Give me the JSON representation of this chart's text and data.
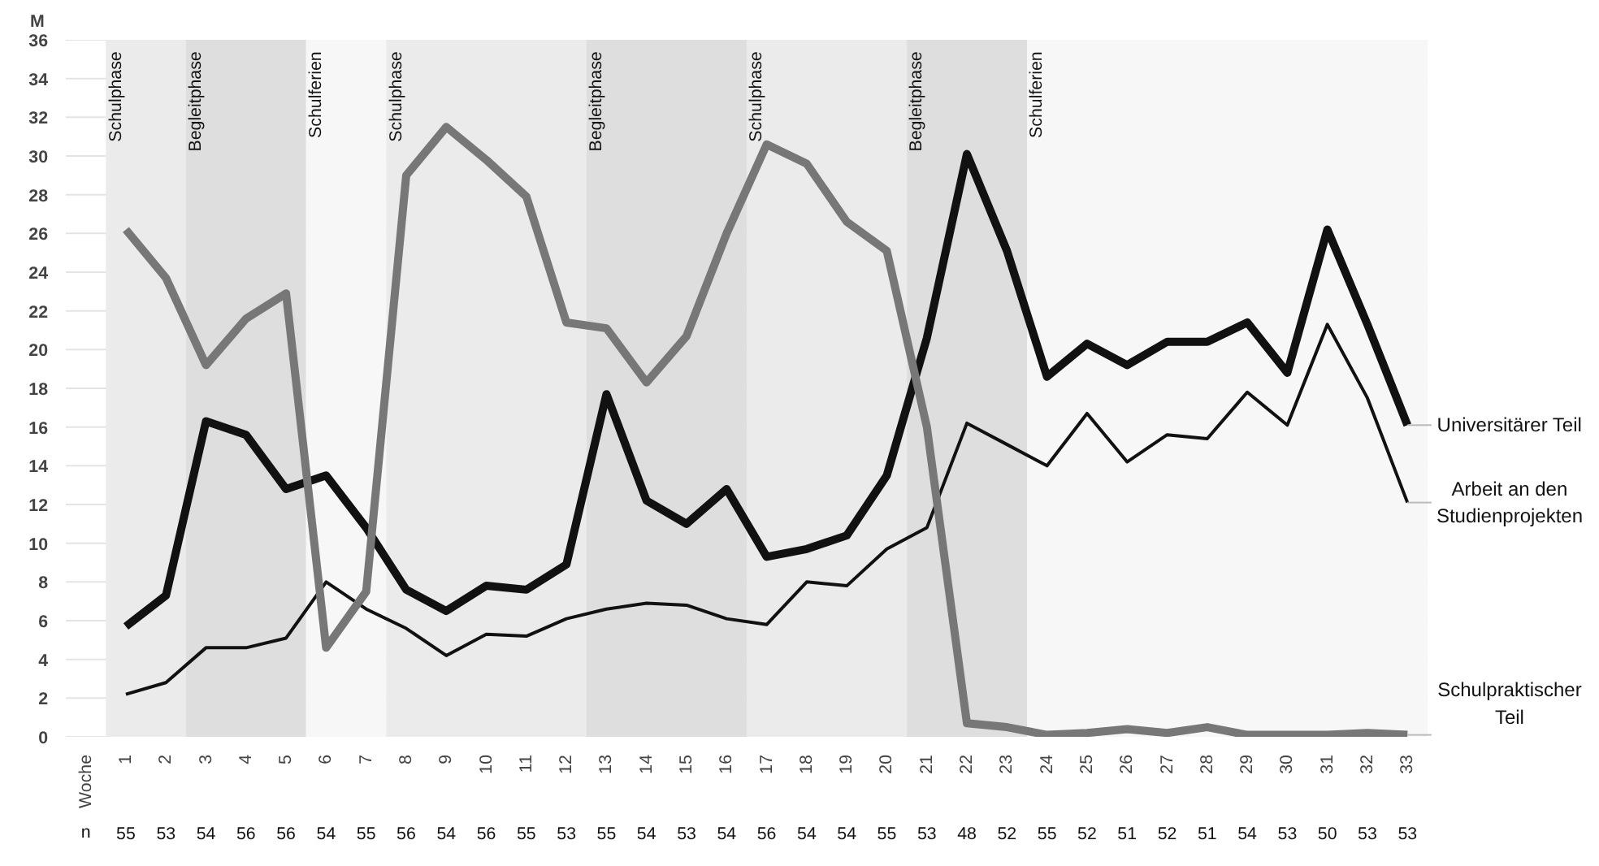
{
  "chart_data": {
    "type": "line",
    "ylabel": "M",
    "categories": [
      "1",
      "2",
      "3",
      "4",
      "5",
      "6",
      "7",
      "8",
      "9",
      "10",
      "11",
      "12",
      "13",
      "14",
      "15",
      "16",
      "17",
      "18",
      "19",
      "20",
      "21",
      "22",
      "23",
      "24",
      "25",
      "26",
      "27",
      "28",
      "29",
      "30",
      "31",
      "32",
      "33"
    ],
    "series": [
      {
        "name": "Universitärer Teil",
        "color": "#111111",
        "values": [
          5.7,
          7.3,
          16.3,
          15.6,
          12.8,
          13.5,
          10.8,
          7.6,
          6.5,
          7.8,
          7.6,
          8.9,
          17.7,
          12.2,
          11.0,
          12.8,
          9.3,
          9.7,
          10.4,
          13.5,
          20.6,
          30.1,
          25.1,
          18.6,
          20.3,
          19.2,
          20.4,
          20.4,
          21.4,
          18.8,
          26.2,
          21.3,
          16.1
        ]
      },
      {
        "name": "Arbeit an den Studienprojekten",
        "color": "#111111",
        "values": [
          2.2,
          2.8,
          4.6,
          4.6,
          5.1,
          8.0,
          6.6,
          5.6,
          4.2,
          5.3,
          5.2,
          6.1,
          6.6,
          6.9,
          6.8,
          6.1,
          5.8,
          8.0,
          7.8,
          9.7,
          10.8,
          16.2,
          15.1,
          14.0,
          16.7,
          14.2,
          15.6,
          15.4,
          17.8,
          16.1,
          21.3,
          17.5,
          12.1
        ]
      },
      {
        "name": "Schulpraktischer Teil",
        "color": "#777777",
        "values": [
          26.2,
          23.7,
          19.2,
          21.6,
          22.9,
          4.6,
          7.5,
          29.0,
          31.5,
          29.8,
          27.9,
          21.4,
          21.1,
          18.3,
          20.7,
          26.0,
          30.6,
          29.6,
          26.6,
          25.1,
          16.0,
          0.7,
          0.5,
          0.1,
          0.2,
          0.4,
          0.2,
          0.5,
          0.1,
          0.1,
          0.1,
          0.2,
          0.1
        ]
      }
    ],
    "ylim": [
      0,
      36
    ],
    "yticks": [
      0,
      2,
      4,
      6,
      8,
      10,
      12,
      14,
      16,
      18,
      20,
      22,
      24,
      26,
      28,
      30,
      32,
      34,
      36
    ],
    "grid": "y",
    "legend": false,
    "bands": [
      {
        "axis": "x",
        "from": "1",
        "to": "2",
        "label": "Schulphase",
        "color": "#ebebeb"
      },
      {
        "axis": "x",
        "from": "3",
        "to": "5",
        "label": "Begleitphase",
        "color": "#dedede"
      },
      {
        "axis": "x",
        "from": "6",
        "to": "7",
        "label": "Schulferien",
        "color": "#f7f7f7"
      },
      {
        "axis": "x",
        "from": "8",
        "to": "12",
        "label": "Schulphase",
        "color": "#ebebeb"
      },
      {
        "axis": "x",
        "from": "13",
        "to": "16",
        "label": "Begleitphase",
        "color": "#dedede"
      },
      {
        "axis": "x",
        "from": "17",
        "to": "20",
        "label": "Schulphase",
        "color": "#ebebeb"
      },
      {
        "axis": "x",
        "from": "21",
        "to": "23",
        "label": "Begleitphase",
        "color": "#dedede"
      },
      {
        "axis": "x",
        "from": "24",
        "to": "33",
        "label": "Schulferien",
        "color": "#f7f7f7"
      }
    ],
    "annotations": [
      "Woche",
      "n",
      "55",
      "53",
      "54",
      "56",
      "56",
      "54",
      "55",
      "56",
      "54",
      "56",
      "55",
      "53",
      "55",
      "54",
      "53",
      "54",
      "56",
      "54",
      "54",
      "55",
      "53",
      "48",
      "52",
      "55",
      "52",
      "51",
      "52",
      "51",
      "54",
      "53",
      "50",
      "53",
      "53"
    ]
  }
}
